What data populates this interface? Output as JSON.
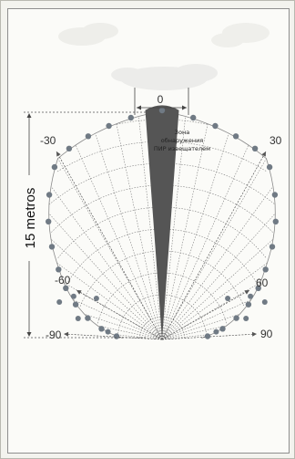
{
  "labels": {
    "top_angle": "0",
    "left_30": "-30",
    "right_30": "30",
    "left_60": "-60",
    "right_60": "60",
    "left_90": "-90",
    "right_90": "90",
    "distance": "15 metros",
    "zone_line1": "Зона",
    "zone_line2": "обнаружения",
    "zone_line3": "ПИР извещателем"
  },
  "colors": {
    "beam": "#555555",
    "dot": "#707a84",
    "grid": "#7f7f7f",
    "cloud": "#f0f0ec"
  }
}
